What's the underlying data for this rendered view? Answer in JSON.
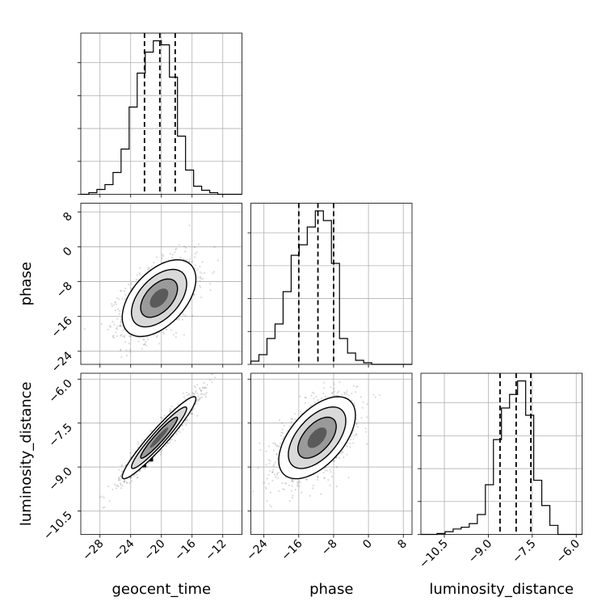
{
  "chart_data": {
    "type": "corner",
    "parameters": [
      "geocent_time",
      "phase",
      "luminosity_distance"
    ],
    "labels": {
      "geocent_time": "geocent_time",
      "phase": "phase",
      "luminosity_distance": "luminosity_distance"
    },
    "ranges": {
      "geocent_time": [
        -30.5,
        -9.5
      ],
      "phase": [
        -27,
        10
      ],
      "luminosity_distance": [
        -11.3,
        -5.8
      ]
    },
    "ticks": {
      "geocent_time": [
        -28,
        -24,
        -20,
        -16,
        -12
      ],
      "phase": [
        -24,
        -16,
        -8,
        0,
        8
      ],
      "luminosity_distance": [
        -10.5,
        -9.0,
        -7.5,
        -6.0
      ]
    },
    "tick_labels": {
      "geocent_time": [
        "−28",
        "−24",
        "−20",
        "−16",
        "−12"
      ],
      "phase": [
        "−24",
        "−16",
        "−8",
        "0",
        "8"
      ],
      "luminosity_distance": [
        "−10.5",
        "−9.0",
        "−7.5",
        "−6.0"
      ]
    },
    "quantiles": {
      "geocent_time": [
        -22.2,
        -20.2,
        -18.2
      ],
      "phase": [
        -16.0,
        -11.6,
        -8.0
      ],
      "luminosity_distance": [
        -8.6,
        -8.05,
        -7.55
      ]
    },
    "histograms": {
      "geocent_time": {
        "edges": [
          -30.5,
          -29.45,
          -28.4,
          -27.35,
          -26.3,
          -25.25,
          -24.2,
          -23.15,
          -22.1,
          -21.05,
          -20.0,
          -18.95,
          -17.9,
          -16.85,
          -15.8,
          -14.75,
          -13.7,
          -12.65,
          -11.6,
          -10.55,
          -9.5
        ],
        "counts": [
          0,
          2,
          6,
          12,
          27,
          56,
          108,
          150,
          176,
          190,
          185,
          145,
          72,
          30,
          10,
          5,
          2,
          0,
          0,
          0
        ]
      },
      "phase": {
        "edges": [
          -27.0,
          -25.15,
          -23.3,
          -21.45,
          -19.6,
          -17.75,
          -15.9,
          -14.05,
          -12.2,
          -10.35,
          -8.5,
          -6.65,
          -4.8,
          -2.95,
          -1.1,
          0.75,
          2.6,
          4.45,
          6.3,
          8.15,
          10.0
        ],
        "counts": [
          4,
          12,
          32,
          50,
          90,
          135,
          148,
          170,
          190,
          178,
          125,
          32,
          14,
          5,
          2,
          0,
          0,
          0,
          0,
          0
        ]
      },
      "luminosity_distance": {
        "edges": [
          -11.3,
          -11.025,
          -10.75,
          -10.475,
          -10.2,
          -9.925,
          -9.65,
          -9.375,
          -9.1,
          -8.825,
          -8.55,
          -8.275,
          -8.0,
          -7.725,
          -7.45,
          -7.175,
          -6.9,
          -6.625,
          -6.35,
          -6.075,
          -5.8
        ],
        "counts": [
          0,
          0,
          1,
          3,
          6,
          8,
          12,
          22,
          55,
          105,
          140,
          155,
          170,
          132,
          60,
          32,
          10,
          0,
          0,
          0
        ]
      }
    },
    "pairs": [
      {
        "x": "geocent_time",
        "y": "phase",
        "center": [
          -20.3,
          -11.8
        ],
        "sd": [
          2.4,
          4.4
        ],
        "corr": 0.5,
        "pixels": [
          [
            -20.3,
            -11.5
          ],
          [
            -21.0,
            -13.0
          ],
          [
            -21.9,
            -14.7
          ],
          [
            -20.0,
            -10.2
          ],
          [
            -21.3,
            -12.5
          ]
        ]
      },
      {
        "x": "geocent_time",
        "y": "luminosity_distance",
        "center": [
          -20.3,
          -8.0
        ],
        "sd": [
          2.4,
          0.7
        ],
        "corr": 0.95,
        "pixels": [
          [
            -19.8,
            -7.8
          ],
          [
            -20.6,
            -8.2
          ],
          [
            -21.5,
            -8.7
          ],
          [
            -22.4,
            -8.9
          ],
          [
            -19.2,
            -7.55
          ]
        ]
      },
      {
        "x": "phase",
        "y": "luminosity_distance",
        "center": [
          -11.8,
          -8.0
        ],
        "sd": [
          4.4,
          0.7
        ],
        "corr": 0.55,
        "pixels": [
          [
            -11.8,
            -8.0
          ],
          [
            -10.8,
            -7.75
          ],
          [
            -13.0,
            -8.0
          ],
          [
            -9.8,
            -7.55
          ],
          [
            -11.3,
            -8.25
          ]
        ]
      }
    ]
  }
}
